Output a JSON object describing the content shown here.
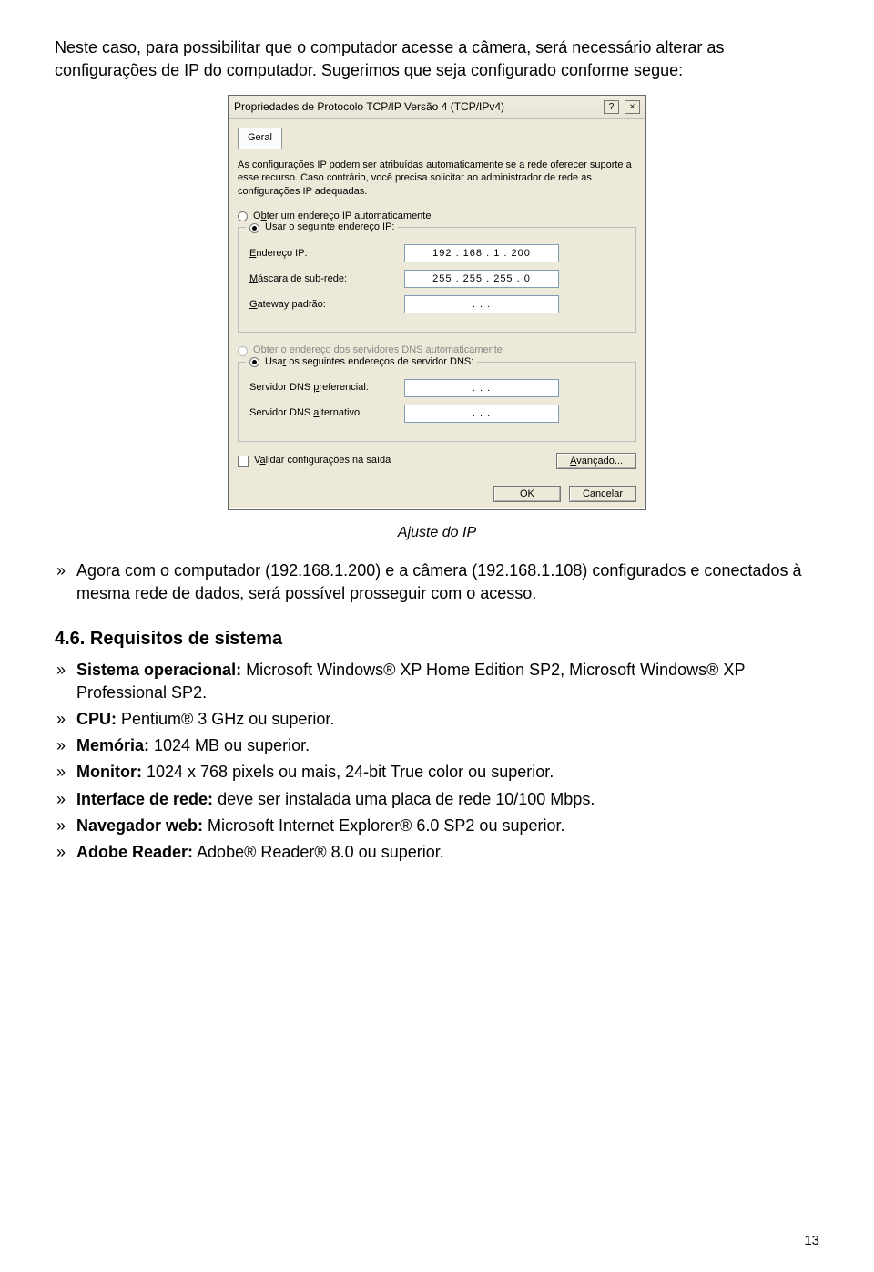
{
  "intro": "Neste caso, para possibilitar que o computador acesse a câmera, será necessário alterar as configurações de IP do computador. Sugerimos que seja configurado conforme segue:",
  "dialog": {
    "title": "Propriedades de Protocolo TCP/IP Versão 4 (TCP/IPv4)",
    "help": "?",
    "close": "×",
    "tab": "Geral",
    "info": "As configurações IP podem ser atribuídas automaticamente se a rede oferecer suporte a esse recurso. Caso contrário, você precisa solicitar ao administrador de rede as configurações IP adequadas.",
    "radio_auto_ip": "Obter um endereço IP automaticamente",
    "radio_use_ip": "Usar o seguinte endereço IP:",
    "lbl_ip": "Endereço IP:",
    "val_ip": "192 . 168 .   1   . 200",
    "lbl_mask": "Máscara de sub-rede:",
    "val_mask": "255 . 255 . 255 .   0",
    "lbl_gw": "Gateway padrão:",
    "val_gw": ".        .        .",
    "radio_auto_dns": "Obter o endereço dos servidores DNS automaticamente",
    "radio_use_dns": "Usar os seguintes endereços de servidor DNS:",
    "lbl_dns1": "Servidor DNS preferencial:",
    "val_dns1": ".        .        .",
    "lbl_dns2": "Servidor DNS alternativo:",
    "val_dns2": ".        .        .",
    "chk_validate": "Validar configurações na saída",
    "btn_adv": "Avançado...",
    "btn_ok": "OK",
    "btn_cancel": "Cancelar"
  },
  "caption": "Ajuste do IP",
  "after_text": "Agora com o computador (192.168.1.200) e a câmera (192.168.1.108) configurados e conectados à mesma rede de dados, será possível prosseguir com o acesso.",
  "section_title": "4.6. Requisitos de sistema",
  "reqs": {
    "os_label": "Sistema operacional:",
    "os_value": " Microsoft Windows® XP Home Edition SP2, Microsoft Windows® XP Professional SP2.",
    "cpu_label": "CPU:",
    "cpu_value": " Pentium® 3 GHz ou superior.",
    "mem_label": "Memória:",
    "mem_value": " 1024 MB ou superior.",
    "mon_label": "Monitor:",
    "mon_value": " 1024 x 768 pixels ou mais, 24-bit True color ou superior.",
    "net_label": "Interface de rede:",
    "net_value": " deve ser instalada uma placa de rede 10/100 Mbps.",
    "web_label": "Navegador web:",
    "web_value": " Microsoft Internet Explorer® 6.0 SP2 ou superior.",
    "adobe_label": "Adobe Reader:",
    "adobe_value": " Adobe® Reader® 8.0 ou superior."
  },
  "page_num": "13"
}
